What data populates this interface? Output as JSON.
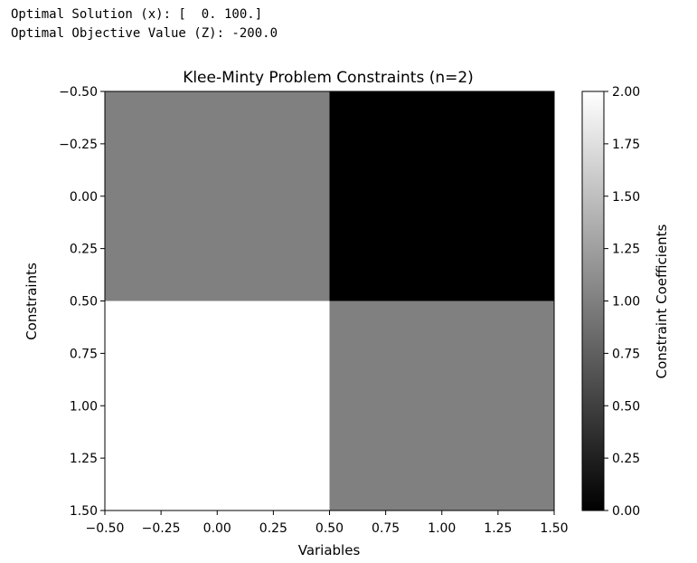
{
  "output": {
    "lines": [
      "Optimal Solution (x): [  0. 100.]",
      "Optimal Objective Value (Z): -200.0"
    ]
  },
  "chart_data": {
    "type": "heatmap",
    "title": "Klee-Minty Problem Constraints (n=2)",
    "xlabel": "Variables",
    "ylabel": "Constraints",
    "colorbar_label": "Constraint Coefficients",
    "colormap": "gray",
    "matrix": [
      [
        1,
        0
      ],
      [
        2,
        1
      ]
    ],
    "xlim": [
      -0.5,
      1.5
    ],
    "ylim": [
      1.5,
      -0.5
    ],
    "y_inverted": true,
    "xticks": [
      -0.5,
      -0.25,
      0.0,
      0.25,
      0.5,
      0.75,
      1.0,
      1.25,
      1.5
    ],
    "xtick_labels": [
      "−0.50",
      "−0.25",
      "0.00",
      "0.25",
      "0.50",
      "0.75",
      "1.00",
      "1.25",
      "1.50"
    ],
    "yticks": [
      -0.5,
      -0.25,
      0.0,
      0.25,
      0.5,
      0.75,
      1.0,
      1.25,
      1.5
    ],
    "ytick_labels": [
      "−0.50",
      "−0.25",
      "0.00",
      "0.25",
      "0.50",
      "0.75",
      "1.00",
      "1.25",
      "1.50"
    ],
    "colorbar_range": [
      0.0,
      2.0
    ],
    "colorbar_ticks": [
      0.0,
      0.25,
      0.5,
      0.75,
      1.0,
      1.25,
      1.5,
      1.75,
      2.0
    ],
    "colorbar_tick_labels": [
      "0.00",
      "0.25",
      "0.50",
      "0.75",
      "1.00",
      "1.25",
      "1.50",
      "1.75",
      "2.00"
    ],
    "grid": false
  }
}
